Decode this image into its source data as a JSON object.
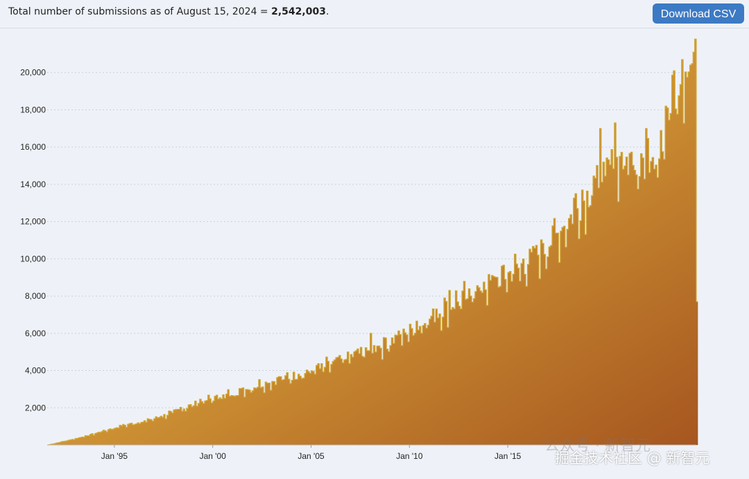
{
  "header": {
    "summary_prefix": "Total number of submissions as of August 15, 2024 = ",
    "total": "2,542,003",
    "summary_suffix": ".",
    "download_label": "Download CSV"
  },
  "watermark": {
    "line1": "公众号 · 新智元",
    "line2": "掘金技术社区 @ 新智元"
  },
  "colors": {
    "fill_top": "#f7d24a",
    "fill_bottom": "#a6561f",
    "outline": "#d2a93a",
    "button": "#3d7ac4",
    "background": "#eef2f8"
  },
  "chart_data": {
    "type": "area",
    "x_label_ticks": [
      "Jan '95",
      "Jan '00",
      "Jan '05",
      "Jan '10",
      "Jan '15"
    ],
    "x_tick_years": [
      1995,
      2000,
      2005,
      2010,
      2015
    ],
    "y_ticks": [
      "2,000",
      "4,000",
      "6,000",
      "8,000",
      "10,000",
      "12,000",
      "14,000",
      "16,000",
      "18,000",
      "20,000"
    ],
    "y_tick_values": [
      2000,
      4000,
      6000,
      8000,
      10000,
      12000,
      14000,
      16000,
      18000,
      20000
    ],
    "ylim": [
      0,
      22000
    ],
    "xlim": [
      "1991-08",
      "2024-08"
    ],
    "grid": true,
    "legend": "none",
    "series": [
      {
        "anchors": [
          [
            "1991-08",
            0
          ],
          [
            "1992-06",
            200
          ],
          [
            "1993-06",
            450
          ],
          [
            "1994-06",
            750
          ],
          [
            "1995-06",
            1050
          ],
          [
            "1996-06",
            1250
          ],
          [
            "1997-06",
            1550
          ],
          [
            "1998-06",
            1950
          ],
          [
            "1999-06",
            2350
          ],
          [
            "2000-06",
            2600
          ],
          [
            "2001-06",
            2900
          ],
          [
            "2002-06",
            3250
          ],
          [
            "2003-06",
            3550
          ],
          [
            "2004-06",
            3800
          ],
          [
            "2005-06",
            4100
          ],
          [
            "2006-06",
            4500
          ],
          [
            "2007-06",
            4950
          ],
          [
            "2008-06",
            5300
          ],
          [
            "2009-06",
            5800
          ],
          [
            "2010-06",
            6400
          ],
          [
            "2011-06",
            7100
          ],
          [
            "2012-06",
            7700
          ],
          [
            "2013-06",
            8300
          ],
          [
            "2014-06",
            8900
          ],
          [
            "2015-06",
            9400
          ],
          [
            "2016-06",
            10200
          ],
          [
            "2017-06",
            11200
          ],
          [
            "2018-06",
            12600
          ],
          [
            "2019-06",
            14000
          ],
          [
            "2020-06",
            15200
          ],
          [
            "2021-06",
            15300
          ],
          [
            "2022-06",
            15600
          ],
          [
            "2023-06",
            18200
          ],
          [
            "2024-06",
            20800
          ],
          [
            "2024-07",
            21200
          ],
          [
            "2024-08",
            7700
          ]
        ],
        "spikes": [
          [
            "2008-01",
            6000
          ],
          [
            "2012-01",
            8300
          ],
          [
            "2018-06",
            13500
          ],
          [
            "2019-09",
            17000
          ],
          [
            "2020-06",
            17300
          ],
          [
            "2022-01",
            17000
          ],
          [
            "2023-01",
            18200
          ],
          [
            "2023-06",
            20100
          ],
          [
            "2023-11",
            20700
          ],
          [
            "2024-04",
            20400
          ],
          [
            "2024-06",
            21100
          ],
          [
            "2024-07",
            21800
          ]
        ]
      }
    ]
  }
}
